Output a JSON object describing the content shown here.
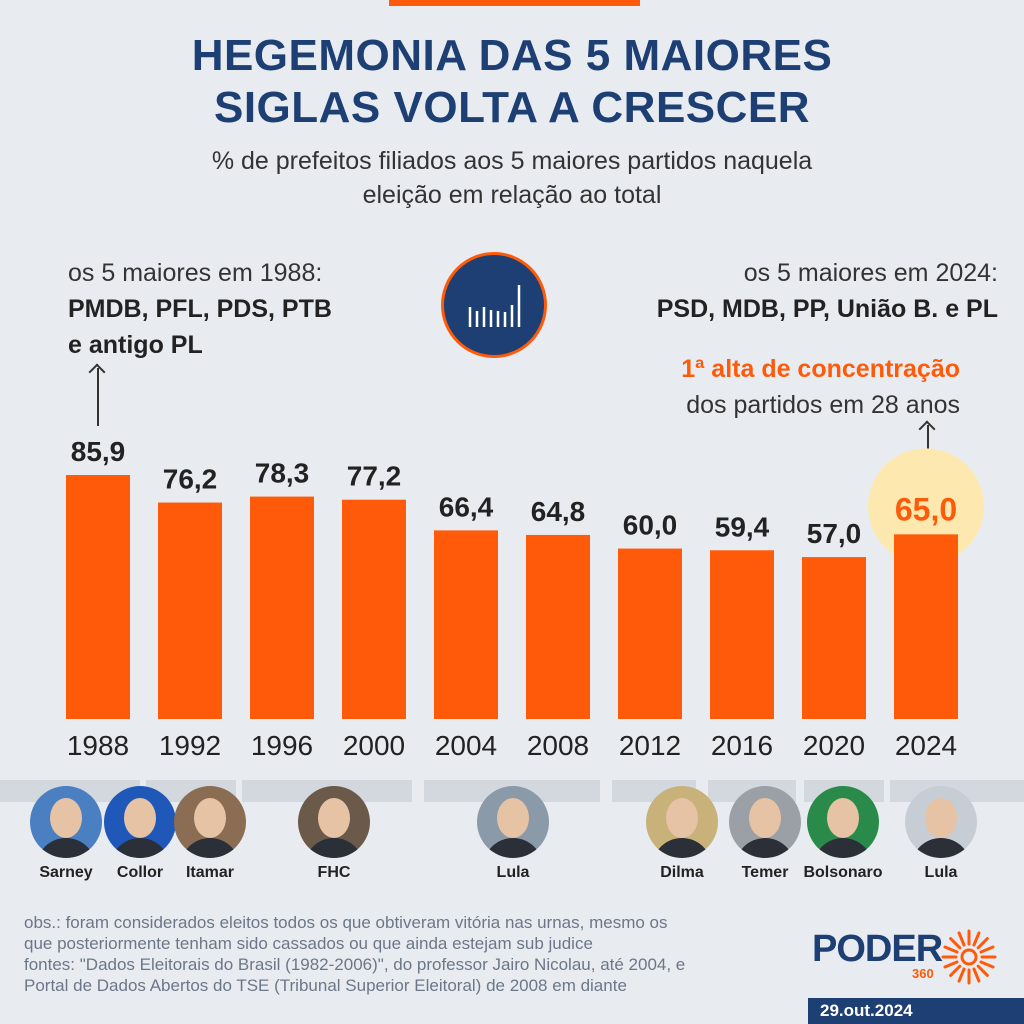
{
  "header": {
    "title_line1": "HEGEMONIA DAS 5 MAIORES",
    "title_line2": "SIGLAS VOLTA A CRESCER",
    "subtitle_line1": "% de prefeitos filiados aos 5 maiores partidos naquela",
    "subtitle_line2": "eleição em relação ao total"
  },
  "notes": {
    "left_line1": "os 5 maiores em 1988:",
    "left_line2": "PMDB, PFL, PDS, PTB",
    "left_line3": "e antigo PL",
    "right_line1": "os 5 maiores em 2024:",
    "right_line2": "PSD, MDB, PP, União B. e PL",
    "highlight_bold": "1ª alta de concentração",
    "highlight_rest": "dos partidos em 28 anos"
  },
  "chart_data": {
    "type": "bar",
    "categories": [
      "1988",
      "1992",
      "1996",
      "2000",
      "2004",
      "2008",
      "2012",
      "2016",
      "2020",
      "2024"
    ],
    "values": [
      85.9,
      76.2,
      78.3,
      77.2,
      66.4,
      64.8,
      60.0,
      59.4,
      57.0,
      65.0
    ],
    "value_labels": [
      "85,9",
      "76,2",
      "78,3",
      "77,2",
      "66,4",
      "64,8",
      "60,0",
      "59,4",
      "57,0",
      "65,0"
    ],
    "highlight_index": 9,
    "bar_color": "#ff5a0a",
    "highlight_bg": "#fde9b0",
    "ylim": [
      0,
      85.9
    ]
  },
  "presidents": [
    {
      "name": "Sarney",
      "bg": "#4a7fc1"
    },
    {
      "name": "Collor",
      "bg": "#1f58b8"
    },
    {
      "name": "Itamar",
      "bg": "#8a6d52"
    },
    {
      "name": "FHC",
      "bg": "#6b5a4a"
    },
    {
      "name": "Lula",
      "bg": "#8a9aa8"
    },
    {
      "name": "Dilma",
      "bg": "#c9b27a"
    },
    {
      "name": "Temer",
      "bg": "#9aa0a6"
    },
    {
      "name": "Bolsonaro",
      "bg": "#2a8a4a"
    },
    {
      "name": "Lula",
      "bg": "#c7cdd4"
    }
  ],
  "footer": {
    "obs_line1": "obs.: foram considerados eleitos todos os que obtiveram vitória nas urnas, mesmo os",
    "obs_line2": "que posteriormente tenham sido cassados ou que ainda estejam sub judice",
    "src_line1": "fontes: \"Dados Eleitorais do Brasil (1982-2006)\", do professor Jairo Nicolau, até 2004, e",
    "src_line2": "Portal de Dados Abertos do TSE (Tribunal Superior Eleitoral) de 2008 em diante",
    "logo_text": "PODER",
    "logo_sub": "360",
    "date": "29.out.2024"
  },
  "colors": {
    "accent": "#ff5a0a",
    "navy": "#1d3f73",
    "background": "#e8ecf1"
  }
}
